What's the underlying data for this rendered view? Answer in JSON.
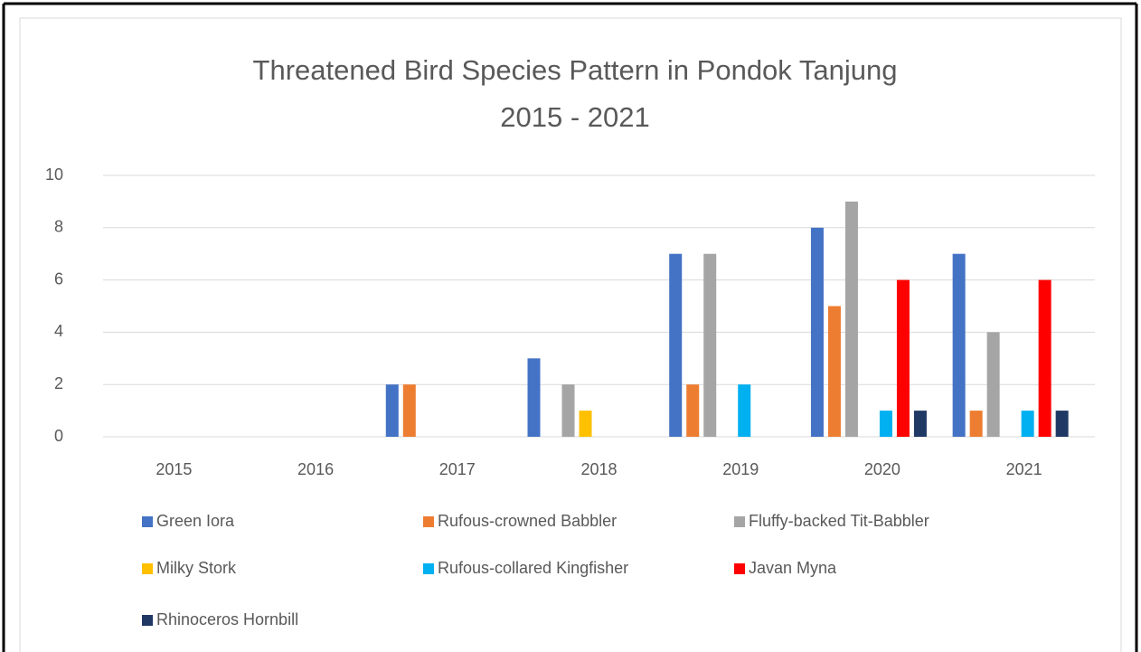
{
  "chart_data": {
    "type": "bar",
    "title": "Threatened Bird Species Pattern in Pondok Tanjung",
    "subtitle": "2015 - 2021",
    "categories": [
      "2015",
      "2016",
      "2017",
      "2018",
      "2019",
      "2020",
      "2021"
    ],
    "series": [
      {
        "name": "Green Iora",
        "color": "#4472c4",
        "values": [
          0,
          0,
          2,
          3,
          7,
          8,
          7
        ]
      },
      {
        "name": "Rufous-crowned Babbler",
        "color": "#ed7d31",
        "values": [
          0,
          0,
          2,
          0,
          2,
          5,
          1
        ]
      },
      {
        "name": "Fluffy-backed Tit-Babbler",
        "color": "#a5a5a5",
        "values": [
          0,
          0,
          0,
          2,
          7,
          9,
          4
        ]
      },
      {
        "name": "Milky Stork",
        "color": "#ffc000",
        "values": [
          0,
          0,
          0,
          1,
          0,
          0,
          0
        ]
      },
      {
        "name": "Rufous-collared Kingfisher",
        "color": "#00b0f0",
        "values": [
          0,
          0,
          0,
          0,
          2,
          1,
          1
        ]
      },
      {
        "name": "Javan Myna",
        "color": "#ff0000",
        "values": [
          0,
          0,
          0,
          0,
          0,
          6,
          6
        ]
      },
      {
        "name": "Rhinoceros Hornbill",
        "color": "#203864",
        "values": [
          0,
          0,
          0,
          0,
          0,
          1,
          1
        ]
      }
    ],
    "ylim": [
      0,
      10
    ],
    "yticks": [
      0,
      2,
      4,
      6,
      8,
      10
    ],
    "grid": true,
    "legend": "bottom"
  }
}
